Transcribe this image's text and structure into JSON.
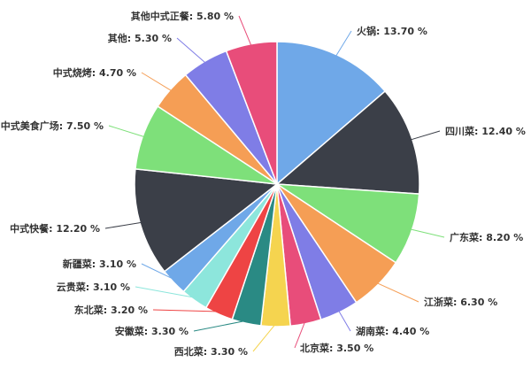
{
  "chart_data": {
    "type": "pie",
    "slices": [
      {
        "label": "火锅",
        "display": "火锅: 13.70 %",
        "value": 13.7,
        "color": "#6fa8e8"
      },
      {
        "label": "四川菜",
        "display": "四川菜: 12.40 %",
        "value": 12.4,
        "color": "#3b3f48"
      },
      {
        "label": "广东菜",
        "display": "广东菜: 8.20 %",
        "value": 8.2,
        "color": "#7ee07a"
      },
      {
        "label": "江浙菜",
        "display": "江浙菜: 6.30 %",
        "value": 6.3,
        "color": "#f59e55"
      },
      {
        "label": "湖南菜",
        "display": "湖南菜: 4.40 %",
        "value": 4.4,
        "color": "#7f7de6"
      },
      {
        "label": "北京菜",
        "display": "北京菜: 3.50 %",
        "value": 3.5,
        "color": "#e84d7a"
      },
      {
        "label": "西北菜",
        "display": "西北菜: 3.30 %",
        "value": 3.3,
        "color": "#f5d44f"
      },
      {
        "label": "安徽菜",
        "display": "安徽菜: 3.30 %",
        "value": 3.3,
        "color": "#2a8a84"
      },
      {
        "label": "东北菜",
        "display": "东北菜: 3.20 %",
        "value": 3.2,
        "color": "#ee4444"
      },
      {
        "label": "云贵菜",
        "display": "云贵菜: 3.10 %",
        "value": 3.1,
        "color": "#8de6dc"
      },
      {
        "label": "新疆菜",
        "display": "新疆菜: 3.10 %",
        "value": 3.1,
        "color": "#6fa8e8"
      },
      {
        "label": "中式快餐",
        "display": "中式快餐: 12.20 %",
        "value": 12.2,
        "color": "#3b3f48"
      },
      {
        "label": "中式美食广场",
        "display": "中式美食广场: 7.50 %",
        "value": 7.5,
        "color": "#7ee07a"
      },
      {
        "label": "中式烧烤",
        "display": "中式烧烤: 4.70 %",
        "value": 4.7,
        "color": "#f59e55"
      },
      {
        "label": "其他",
        "display": "其他: 5.30 %",
        "value": 5.3,
        "color": "#7f7de6"
      },
      {
        "label": "其他中式正餐",
        "display": "其他中式正餐: 5.80 %",
        "value": 5.8,
        "color": "#e84d7a"
      }
    ],
    "start_angle_deg": 0,
    "direction": "clockwise",
    "legend": "none"
  }
}
